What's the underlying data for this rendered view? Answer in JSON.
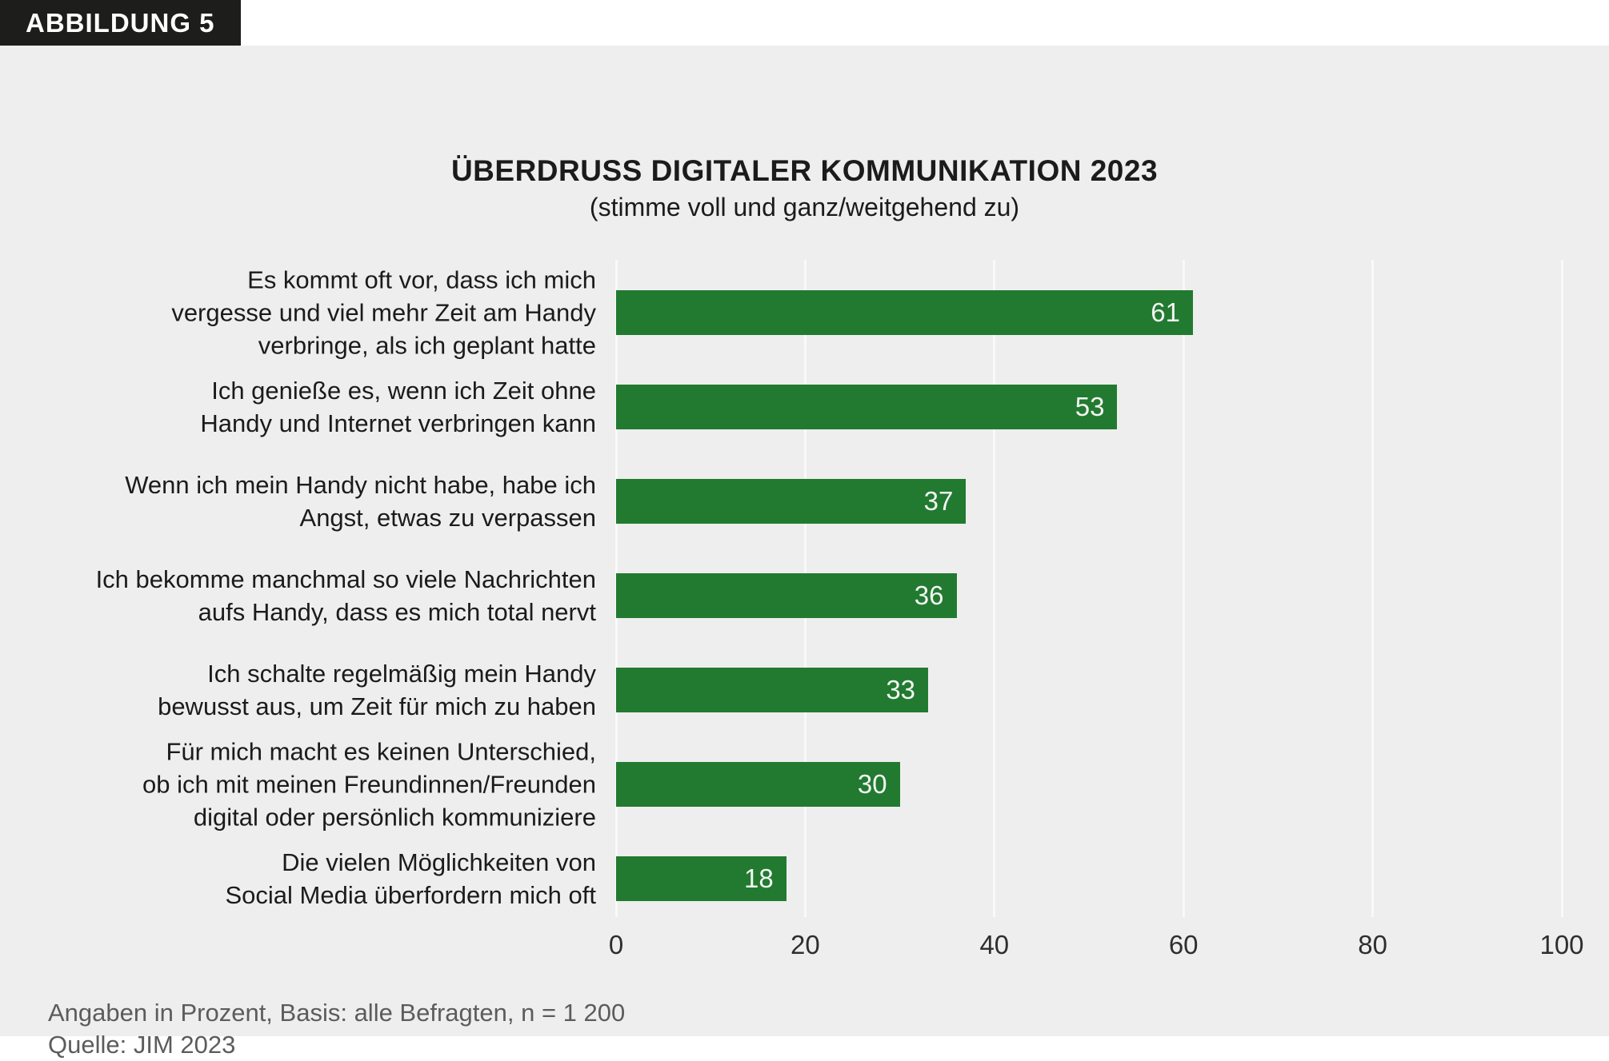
{
  "badge": {
    "label": "ABBILDUNG 5"
  },
  "chart_data": {
    "type": "bar",
    "orientation": "horizontal",
    "title": "ÜBERDRUSS DIGITALER KOMMUNIKATION 2023",
    "subtitle": "(stimme voll und ganz/weitgehend zu)",
    "categories": [
      "Es kommt oft vor, dass ich mich\nvergesse und viel mehr Zeit am Handy\nverbringe, als ich geplant hatte",
      "Ich genieße es, wenn ich Zeit ohne\nHandy und Internet verbringen kann",
      "Wenn ich mein Handy nicht habe, habe ich\nAngst, etwas zu verpassen",
      "Ich bekomme manchmal so viele Nachrichten\naufs Handy, dass es mich total nervt",
      "Ich schalte regelmäßig mein Handy\nbewusst aus, um Zeit für mich zu haben",
      "Für mich macht es keinen Unterschied,\nob ich mit meinen Freundinnen/Freunden\ndigital oder persönlich kommuniziere",
      "Die vielen Möglichkeiten von\nSocial Media überfordern mich oft"
    ],
    "values": [
      61,
      53,
      37,
      36,
      33,
      30,
      18
    ],
    "xlim": [
      0,
      100
    ],
    "x_ticks": [
      0,
      20,
      40,
      60,
      80,
      100
    ],
    "grid": true,
    "legend": false,
    "bar_color": "#227a30",
    "value_label_color": "#f3f7f3",
    "panel_background": "#eeeeee",
    "badge_background": "#1d1d1b"
  },
  "footnotes": [
    "Angaben in Prozent, Basis: alle Befragten, n = 1 200",
    "Quelle: JIM 2023"
  ]
}
